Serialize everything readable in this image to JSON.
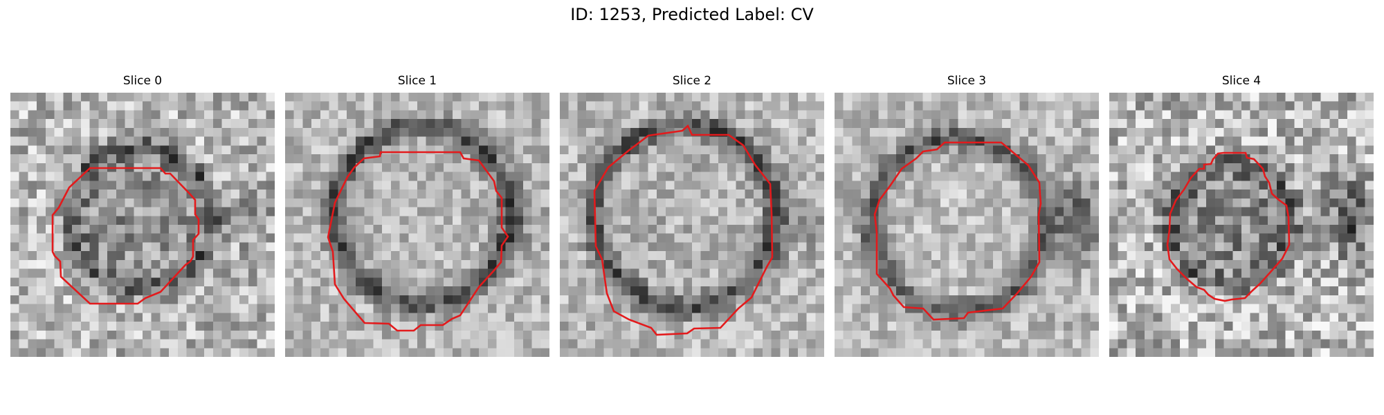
{
  "title": "ID: 1253, Predicted Label: CV",
  "colors": {
    "background": "#ffffff",
    "contour": "#e31a1c",
    "colormap": "gray"
  },
  "panels": [
    {
      "title": "Slice 0",
      "content": "grayscale noisy microscopy patch with a dark ring; red segmentation contour outlines a roughly round vesicle"
    },
    {
      "title": "Slice 1",
      "content": "grayscale microscopy patch, larger bright round vesicle bounded by a dark membrane; red contour"
    },
    {
      "title": "Slice 2",
      "content": "grayscale microscopy patch, bright round vesicle with dark rim; red contour"
    },
    {
      "title": "Slice 3",
      "content": "grayscale microscopy patch, bright round vesicle with dark rim; red contour"
    },
    {
      "title": "Slice 4",
      "content": "grayscale noisy microscopy patch, smaller vesicle; red contour"
    }
  ]
}
